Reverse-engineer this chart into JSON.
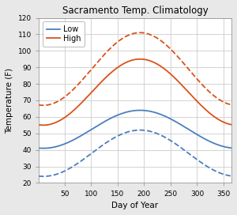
{
  "title": "Sacramento Temp. Climatology",
  "xlabel": "Day of Year",
  "ylabel": "Temperature (F)",
  "xlim": [
    1,
    365
  ],
  "ylim": [
    20,
    120
  ],
  "xticks": [
    50,
    100,
    150,
    200,
    250,
    300,
    350
  ],
  "yticks": [
    20,
    30,
    40,
    50,
    60,
    70,
    80,
    90,
    100,
    110,
    120
  ],
  "low_color": "#4c7fbf",
  "high_color": "#d95319",
  "fig_bg_color": "#e8e8e8",
  "ax_bg_color": "#ffffff",
  "grid_color": "#cccccc",
  "legend_labels": [
    "Low",
    "High"
  ]
}
